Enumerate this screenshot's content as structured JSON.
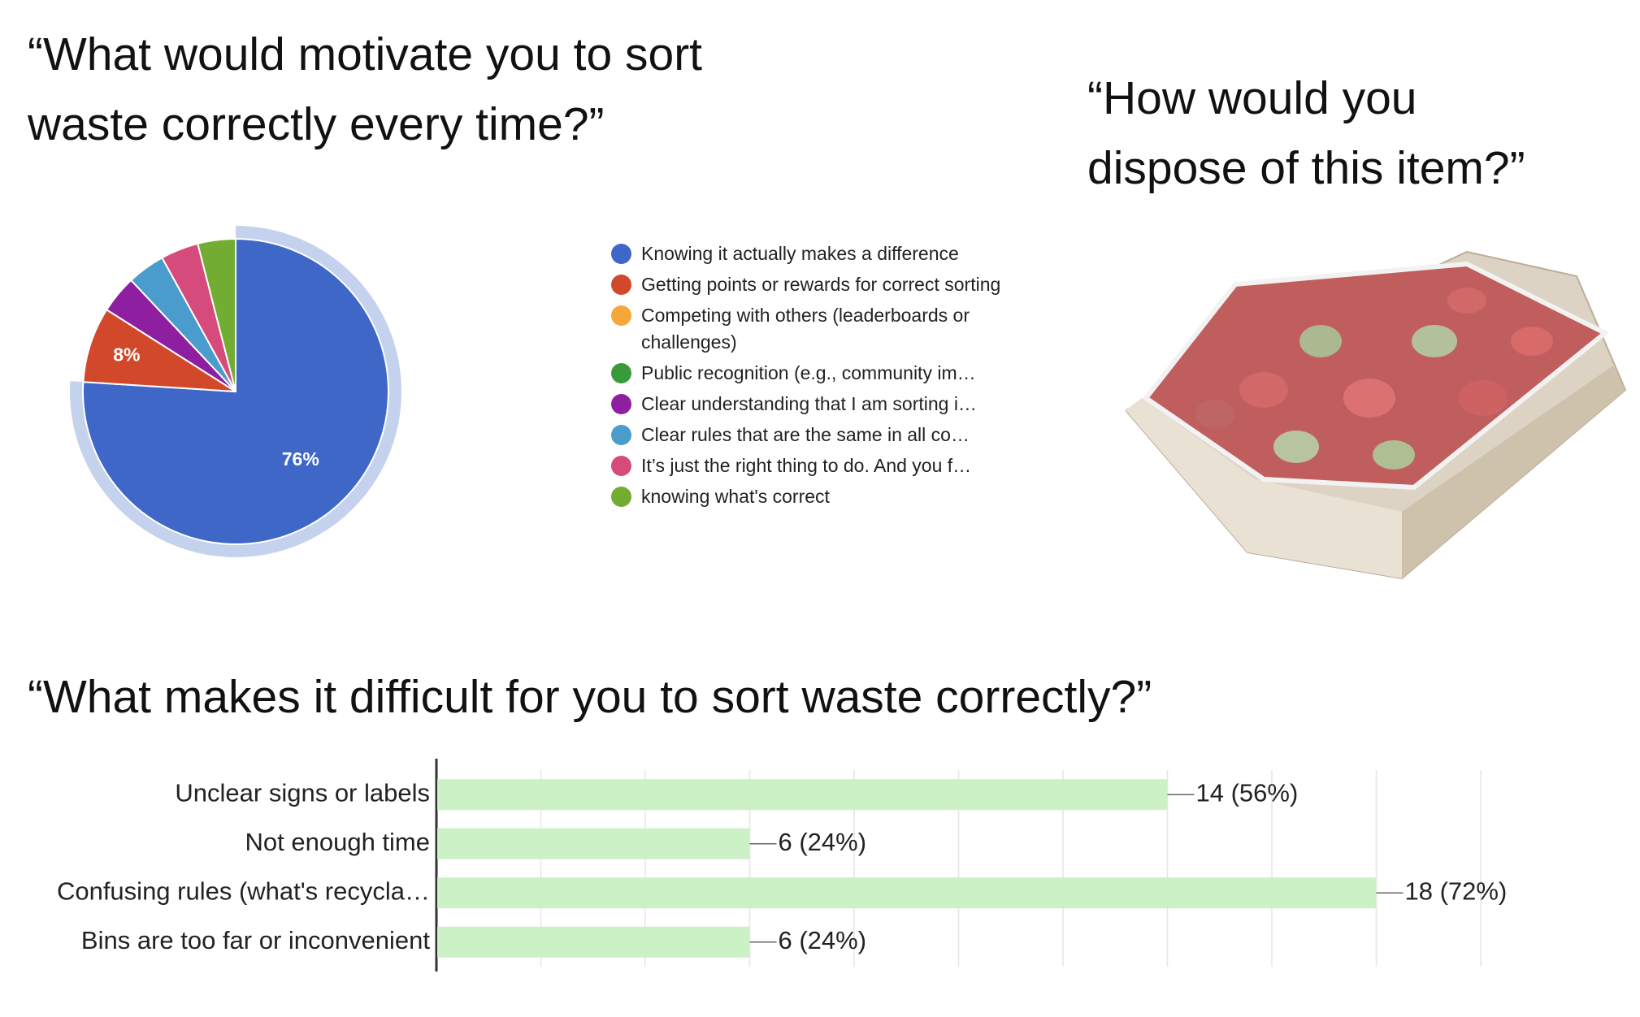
{
  "questions": {
    "motivate": "“What would motivate you to sort\nwaste correctly every time?”",
    "dispose": "“How would you\ndispose of this item?”",
    "difficult": "“What makes it difficult for you to sort waste correctly?”"
  },
  "chart_data": [
    {
      "type": "pie",
      "title": "",
      "legend_position": "right",
      "slices": [
        {
          "label": "Knowing it actually makes a difference",
          "value": 76,
          "display": "76%",
          "color": "#3f67c8"
        },
        {
          "label": "Getting points or rewards for correct sorting",
          "value": 8,
          "display": "8%",
          "color": "#d1492a"
        },
        {
          "label": "Competing with others (leaderboards or challenges)",
          "value": 0,
          "display": "",
          "color": "#f6a73a"
        },
        {
          "label": "Public recognition (e.g., community im…",
          "value": 0,
          "display": "",
          "color": "#3a9a3a"
        },
        {
          "label": "Clear understanding that I am sorting i…",
          "value": 4,
          "display": "",
          "color": "#8e1fa0"
        },
        {
          "label": "Clear rules that are the same in all co…",
          "value": 4,
          "display": "",
          "color": "#4a9ccc"
        },
        {
          "label": "It’s just the right thing to do. And you f…",
          "value": 4,
          "display": "",
          "color": "#d54b7b"
        },
        {
          "label": "knowing what's correct",
          "value": 4,
          "display": "",
          "color": "#73ac33"
        }
      ]
    },
    {
      "type": "bar",
      "orientation": "horizontal",
      "title": "",
      "xlabel": "",
      "ylabel": "",
      "categories": [
        "Unclear signs or labels",
        "Not enough time",
        "Confusing rules (what's recycla…",
        "Bins are too far or inconvenient"
      ],
      "values": [
        14,
        6,
        18,
        6
      ],
      "value_labels": [
        "14 (56%)",
        "6 (24%)",
        "18 (72%)",
        "6 (24%)"
      ],
      "xlim": [
        0,
        20
      ],
      "grid": true,
      "bar_color": "#cdf1c6"
    }
  ],
  "image": {
    "icon": "takeaway-fruit-container-photo"
  }
}
